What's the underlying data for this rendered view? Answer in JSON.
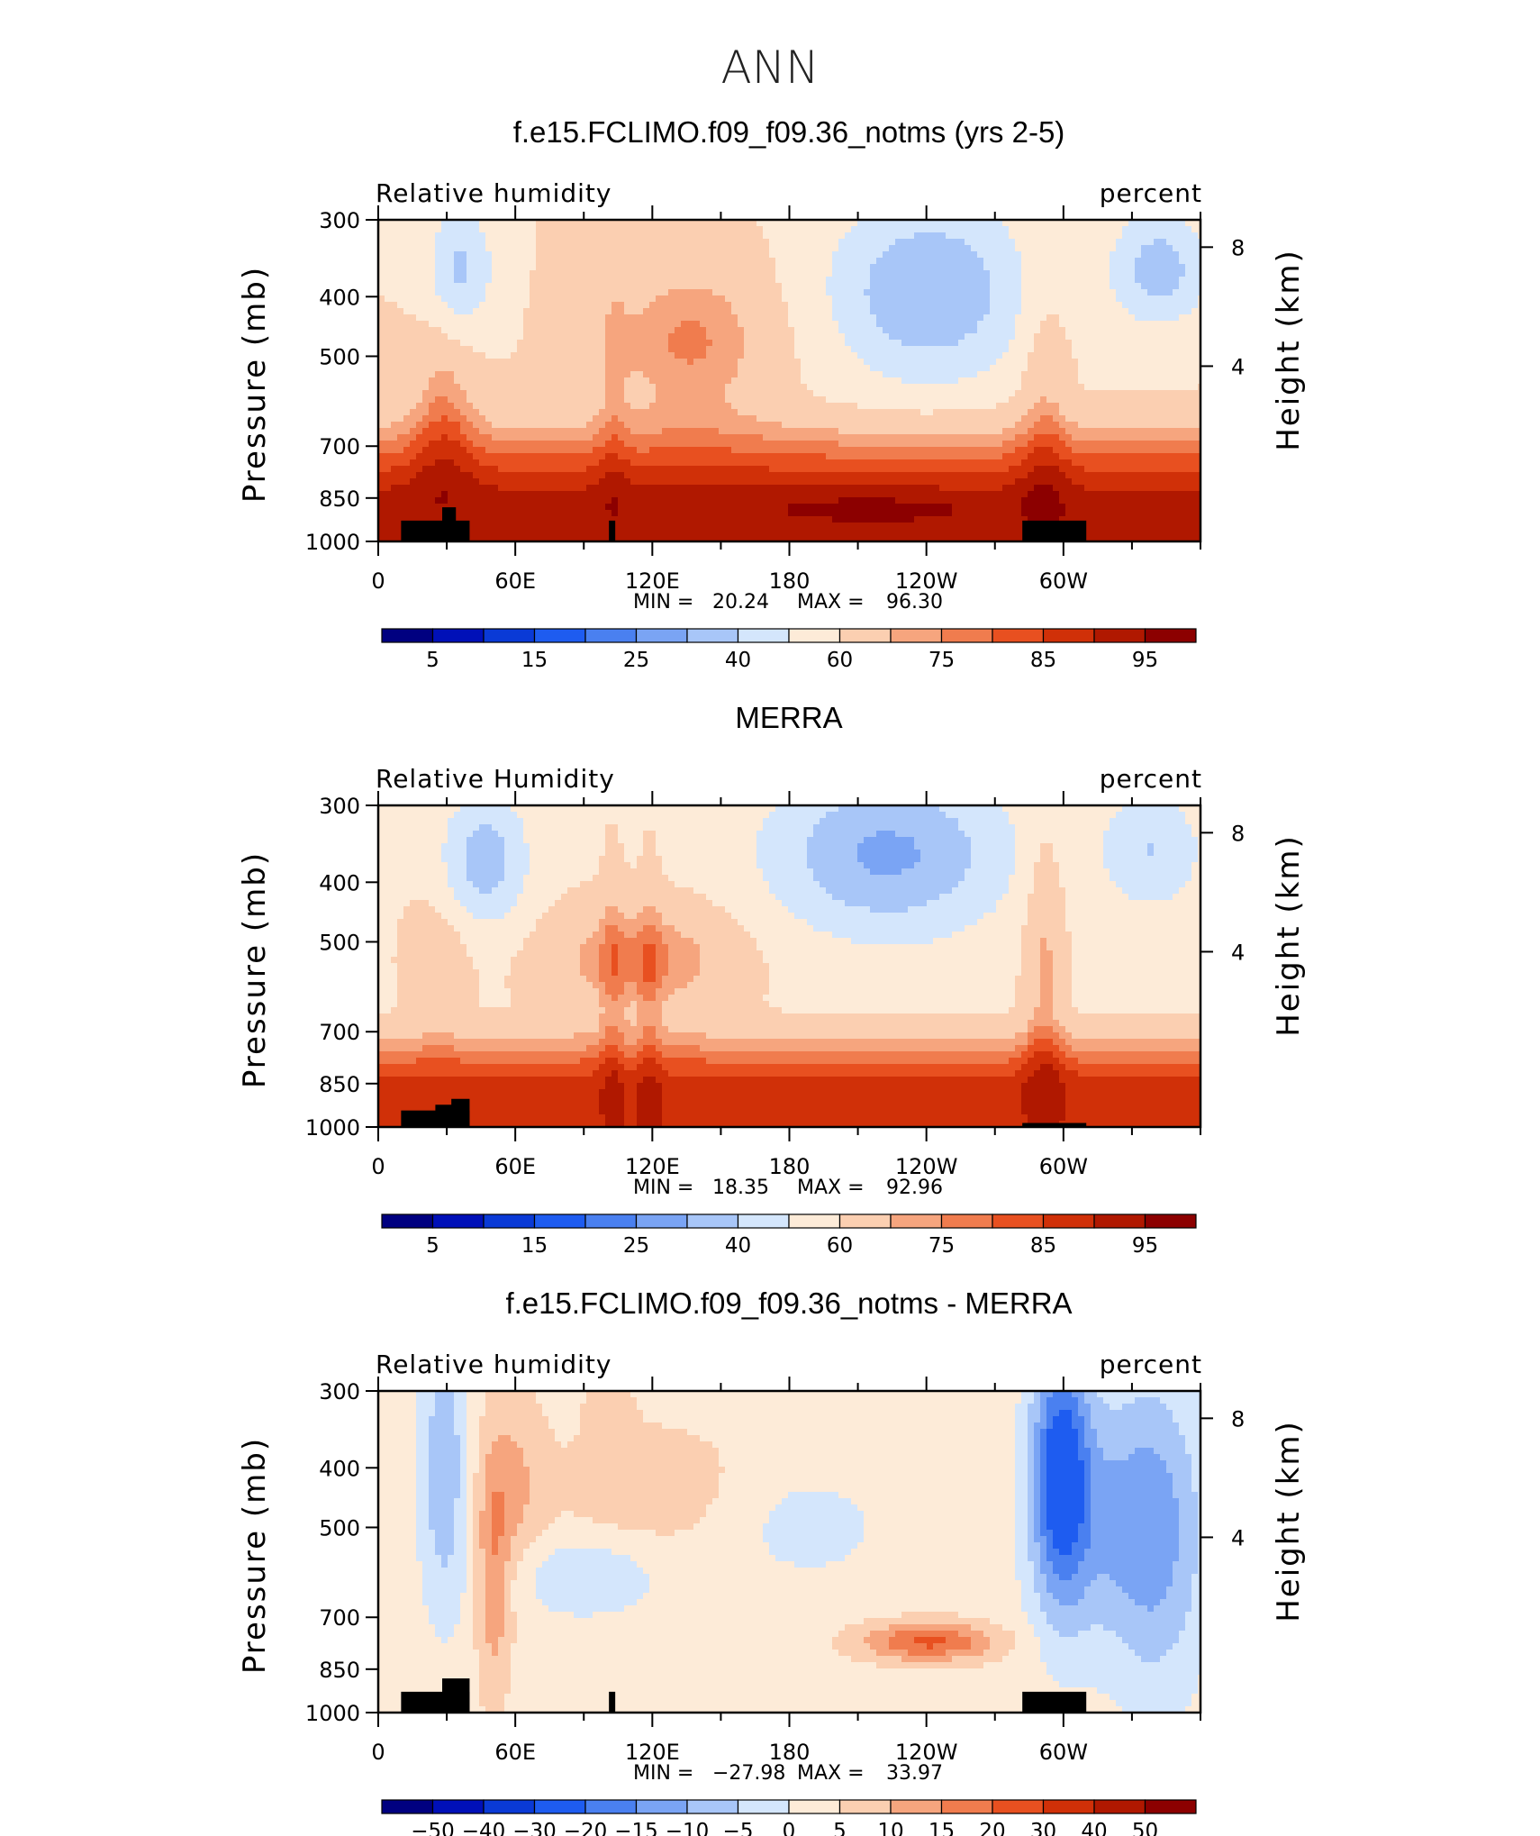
{
  "figure_title": "ANN",
  "chart_data": [
    {
      "type": "heatmap",
      "title": "f.e15.FCLIMO.f09_f09.36_notms (yrs 2-5)",
      "field_label": "Relative humidity",
      "units_label": "percent",
      "ylabel": "Pressure (mb)",
      "ylabel_right": "Height (km)",
      "x_ticks": [
        "0",
        "60E",
        "120E",
        "180",
        "120W",
        "60W"
      ],
      "x_tick_values": [
        0,
        60,
        120,
        180,
        240,
        300
      ],
      "xlim": [
        0,
        360
      ],
      "y_ticks": [
        "300",
        "400",
        "500",
        "700",
        "850",
        "1000"
      ],
      "y_tick_values": [
        300,
        400,
        500,
        700,
        850,
        1000
      ],
      "ylim": [
        1000,
        300
      ],
      "y_scale": "log",
      "right_ticks": [
        "8",
        "4"
      ],
      "right_tick_values": [
        8,
        4
      ],
      "min_label": "MIN =",
      "min_value": "20.24",
      "max_label": "MAX =",
      "max_value": "96.30",
      "colorbar_levels": [
        5,
        10,
        15,
        20,
        25,
        30,
        40,
        50,
        60,
        70,
        75,
        80,
        85,
        90,
        95
      ],
      "colorbar_labels": [
        "5",
        "15",
        "25",
        "40",
        "60",
        "75",
        "85",
        "95"
      ],
      "terrain": [
        [
          10,
          925,
          40
        ],
        [
          28,
          880,
          34
        ]
      ]
    },
    {
      "type": "heatmap",
      "title": "MERRA",
      "field_label": "Relative Humidity",
      "units_label": "percent",
      "ylabel": "Pressure (mb)",
      "ylabel_right": "Height (km)",
      "x_ticks": [
        "0",
        "60E",
        "120E",
        "180",
        "120W",
        "60W"
      ],
      "x_tick_values": [
        0,
        60,
        120,
        180,
        240,
        300
      ],
      "xlim": [
        0,
        360
      ],
      "y_ticks": [
        "300",
        "400",
        "500",
        "700",
        "850",
        "1000"
      ],
      "y_tick_values": [
        300,
        400,
        500,
        700,
        850,
        1000
      ],
      "ylim": [
        1000,
        300
      ],
      "y_scale": "log",
      "right_ticks": [
        "8",
        "4"
      ],
      "right_tick_values": [
        8,
        4
      ],
      "min_label": "MIN =",
      "min_value": "18.35",
      "max_label": "MAX =",
      "max_value": "92.96",
      "colorbar_levels": [
        5,
        10,
        15,
        20,
        25,
        30,
        40,
        50,
        60,
        70,
        75,
        80,
        85,
        90,
        95
      ],
      "colorbar_labels": [
        "5",
        "15",
        "25",
        "40",
        "60",
        "75",
        "85",
        "95"
      ],
      "terrain": [
        [
          10,
          940,
          40
        ],
        [
          25,
          920,
          36
        ],
        [
          32,
          900,
          40
        ]
      ]
    },
    {
      "type": "heatmap",
      "title": "f.e15.FCLIMO.f09_f09.36_notms - MERRA",
      "field_label": "Relative humidity",
      "units_label": "percent",
      "ylabel": "Pressure (mb)",
      "ylabel_right": "Height (km)",
      "x_ticks": [
        "0",
        "60E",
        "120E",
        "180",
        "120W",
        "60W"
      ],
      "x_tick_values": [
        0,
        60,
        120,
        180,
        240,
        300
      ],
      "xlim": [
        0,
        360
      ],
      "y_ticks": [
        "300",
        "400",
        "500",
        "700",
        "850",
        "1000"
      ],
      "y_tick_values": [
        300,
        400,
        500,
        700,
        850,
        1000
      ],
      "ylim": [
        1000,
        300
      ],
      "y_scale": "log",
      "right_ticks": [
        "8",
        "4"
      ],
      "right_tick_values": [
        8,
        4
      ],
      "min_label": "MIN =",
      "min_value": "−27.98",
      "max_label": "MAX =",
      "max_value": "33.97",
      "colorbar_levels": [
        -50,
        -40,
        -30,
        -20,
        -15,
        -10,
        -5,
        0,
        5,
        10,
        15,
        20,
        30,
        40,
        50
      ],
      "colorbar_labels": [
        "−50",
        "−40",
        "−30",
        "−20",
        "−15",
        "−10",
        "−5",
        "0",
        "5",
        "10",
        "15",
        "20",
        "30",
        "40",
        "50"
      ],
      "terrain": [
        [
          10,
          925,
          40
        ],
        [
          28,
          880,
          40
        ]
      ]
    }
  ],
  "colors": {
    "palette": [
      "#000080",
      "#0010b8",
      "#0a3ad6",
      "#1e5cf0",
      "#4a80f0",
      "#7aa4f4",
      "#a8c6f8",
      "#d4e6fc",
      "#fdebd8",
      "#fbcfb1",
      "#f6a57e",
      "#f07c4e",
      "#e85020",
      "#d03008",
      "#b01800",
      "#8c0000"
    ],
    "terrain": "#000000"
  }
}
